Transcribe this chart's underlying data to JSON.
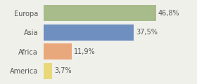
{
  "categories": [
    "Europa",
    "Asia",
    "Africa",
    "America"
  ],
  "values": [
    46.8,
    37.5,
    11.9,
    3.7
  ],
  "labels": [
    "46,8%",
    "37,5%",
    "11,9%",
    "3,7%"
  ],
  "bar_colors": [
    "#a8bb8a",
    "#6e8fbf",
    "#e8a87c",
    "#e8d87a"
  ],
  "background_color": "#f0f0eb",
  "xlim": [
    0,
    62
  ],
  "bar_height": 0.82,
  "label_fontsize": 7,
  "category_fontsize": 7
}
